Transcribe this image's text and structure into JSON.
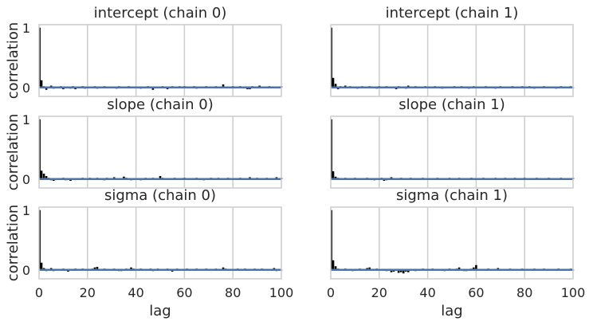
{
  "chart_data": [
    {
      "type": "bar",
      "title": "intercept (chain 0)",
      "xlabel": "",
      "ylabel": "correlation",
      "xlim": [
        0,
        100
      ],
      "ylim": [
        -0.15,
        1.05
      ],
      "yticks": [
        0,
        1
      ],
      "xticks": [
        0,
        20,
        40,
        60,
        80,
        100
      ],
      "grid": true,
      "acf_line_color": "#4c72b0",
      "bar_color": "#000000",
      "x": [
        0,
        1,
        2,
        3,
        4,
        5,
        6,
        7,
        8,
        9,
        10,
        11,
        12,
        13,
        14,
        15,
        16,
        17,
        18,
        19,
        20,
        21,
        22,
        23,
        24,
        25,
        26,
        27,
        28,
        29,
        30,
        31,
        32,
        33,
        34,
        35,
        36,
        37,
        38,
        39,
        40,
        41,
        42,
        43,
        44,
        45,
        46,
        47,
        48,
        49,
        50,
        51,
        52,
        53,
        54,
        55,
        56,
        57,
        58,
        59,
        60,
        61,
        62,
        63,
        64,
        65,
        66,
        67,
        68,
        69,
        70,
        71,
        72,
        73,
        74,
        75,
        76,
        77,
        78,
        79,
        80,
        81,
        82,
        83,
        84,
        85,
        86,
        87,
        88,
        89,
        90,
        91,
        92,
        93,
        94,
        95,
        96,
        97,
        98,
        99,
        100
      ],
      "values": [
        1.0,
        0.12,
        0.02,
        -0.04,
        0.01,
        0.03,
        -0.02,
        0.0,
        0.01,
        0.02,
        -0.03,
        0.01,
        0.0,
        -0.02,
        0.02,
        -0.03,
        0.01,
        0.0,
        0.02,
        -0.02,
        0.01,
        0.0,
        -0.01,
        0.02,
        -0.02,
        0.01,
        0.0,
        0.02,
        0.01,
        -0.01,
        0.0,
        0.01,
        -0.02,
        0.02,
        0.01,
        0.0,
        -0.01,
        0.02,
        -0.01,
        0.0,
        0.01,
        0.0,
        -0.02,
        0.01,
        -0.01,
        0.02,
        0.0,
        -0.04,
        0.01,
        0.0,
        -0.01,
        0.02,
        0.0,
        -0.03,
        0.01,
        0.02,
        0.0,
        -0.01,
        0.02,
        0.01,
        0.02,
        0.0,
        0.01,
        -0.01,
        0.02,
        -0.02,
        0.01,
        0.0,
        0.01,
        0.02,
        -0.01,
        0.0,
        0.01,
        0.02,
        -0.01,
        0.0,
        0.05,
        0.0,
        -0.01,
        0.01,
        0.02,
        0.0,
        -0.01,
        0.02,
        0.0,
        0.0,
        -0.03,
        -0.03,
        0.02,
        0.0,
        0.01,
        0.03,
        -0.01,
        0.0,
        0.01,
        0.02,
        0.0,
        -0.01,
        0.01,
        -0.01,
        0.02
      ]
    },
    {
      "type": "bar",
      "title": "intercept (chain 1)",
      "xlabel": "",
      "ylabel": "",
      "xlim": [
        0,
        100
      ],
      "ylim": [
        -0.15,
        1.05
      ],
      "yticks": [
        0,
        1
      ],
      "xticks": [
        0,
        20,
        40,
        60,
        80,
        100
      ],
      "grid": true,
      "acf_line_color": "#4c72b0",
      "bar_color": "#000000",
      "x": [
        0,
        1,
        2,
        3,
        4,
        5,
        6,
        7,
        8,
        9,
        10,
        11,
        12,
        13,
        14,
        15,
        16,
        17,
        18,
        19,
        20,
        21,
        22,
        23,
        24,
        25,
        26,
        27,
        28,
        29,
        30,
        31,
        32,
        33,
        34,
        35,
        36,
        37,
        38,
        39,
        40,
        41,
        42,
        43,
        44,
        45,
        46,
        47,
        48,
        49,
        50,
        51,
        52,
        53,
        54,
        55,
        56,
        57,
        58,
        59,
        60,
        61,
        62,
        63,
        64,
        65,
        66,
        67,
        68,
        69,
        70,
        71,
        72,
        73,
        74,
        75,
        76,
        77,
        78,
        79,
        80,
        81,
        82,
        83,
        84,
        85,
        86,
        87,
        88,
        89,
        90,
        91,
        92,
        93,
        94,
        95,
        96,
        97,
        98,
        99,
        100
      ],
      "values": [
        1.0,
        0.16,
        0.06,
        -0.03,
        0.02,
        0.01,
        0.03,
        -0.01,
        0.02,
        0.01,
        0.0,
        -0.02,
        0.01,
        0.02,
        0.0,
        -0.01,
        0.02,
        0.0,
        0.01,
        -0.02,
        0.02,
        -0.01,
        0.0,
        0.02,
        -0.01,
        0.01,
        0.0,
        -0.03,
        0.02,
        0.01,
        0.0,
        -0.02,
        0.03,
        0.01,
        -0.01,
        0.02,
        0.0,
        -0.01,
        0.01,
        0.02,
        0.0,
        0.01,
        -0.01,
        0.02,
        0.0,
        0.01,
        -0.02,
        0.01,
        0.0,
        0.01,
        -0.01,
        0.02,
        0.0,
        -0.01,
        0.02,
        0.01,
        0.0,
        -0.02,
        0.01,
        0.02,
        0.0,
        0.01,
        -0.01,
        0.0,
        0.02,
        -0.01,
        0.01,
        0.0,
        -0.02,
        0.01,
        0.02,
        0.0,
        -0.01,
        0.01,
        0.0,
        0.02,
        -0.01,
        0.0,
        0.01,
        0.02,
        -0.01,
        0.0,
        0.02,
        0.0,
        -0.02,
        0.01,
        0.0,
        0.01,
        0.02,
        -0.01,
        0.0,
        0.01,
        0.0,
        -0.02,
        0.01,
        0.02,
        0.0,
        -0.01,
        0.01,
        0.02,
        0.0
      ]
    },
    {
      "type": "bar",
      "title": "slope (chain 0)",
      "xlabel": "",
      "ylabel": "correlation",
      "xlim": [
        0,
        100
      ],
      "ylim": [
        -0.15,
        1.05
      ],
      "yticks": [
        0,
        1
      ],
      "xticks": [
        0,
        20,
        40,
        60,
        80,
        100
      ],
      "grid": true,
      "acf_line_color": "#4c72b0",
      "bar_color": "#000000",
      "x": [
        0,
        1,
        2,
        3,
        4,
        5,
        6,
        7,
        8,
        9,
        10,
        11,
        12,
        13,
        14,
        15,
        16,
        17,
        18,
        19,
        20,
        21,
        22,
        23,
        24,
        25,
        26,
        27,
        28,
        29,
        30,
        31,
        32,
        33,
        34,
        35,
        36,
        37,
        38,
        39,
        40,
        41,
        42,
        43,
        44,
        45,
        46,
        47,
        48,
        49,
        50,
        51,
        52,
        53,
        54,
        55,
        56,
        57,
        58,
        59,
        60,
        61,
        62,
        63,
        64,
        65,
        66,
        67,
        68,
        69,
        70,
        71,
        72,
        73,
        74,
        75,
        76,
        77,
        78,
        79,
        80,
        81,
        82,
        83,
        84,
        85,
        86,
        87,
        88,
        89,
        90,
        91,
        92,
        93,
        94,
        95,
        96,
        97,
        98,
        99,
        100
      ],
      "values": [
        1.0,
        0.14,
        0.09,
        0.05,
        0.02,
        -0.02,
        -0.03,
        0.01,
        0.0,
        -0.01,
        0.02,
        -0.02,
        0.01,
        -0.03,
        0.0,
        0.01,
        -0.01,
        0.0,
        0.02,
        -0.01,
        0.01,
        0.02,
        0.0,
        -0.01,
        0.02,
        0.0,
        0.01,
        -0.02,
        0.02,
        0.0,
        0.01,
        0.03,
        0.0,
        -0.01,
        0.01,
        0.04,
        0.02,
        0.0,
        -0.02,
        0.01,
        0.0,
        0.01,
        -0.02,
        0.01,
        0.02,
        0.0,
        -0.01,
        0.02,
        0.01,
        0.0,
        0.05,
        0.02,
        0.0,
        -0.01,
        0.01,
        0.0,
        0.02,
        -0.01,
        0.0,
        0.01,
        0.02,
        0.0,
        -0.01,
        0.01,
        0.0,
        0.02,
        0.0,
        0.01,
        -0.02,
        0.0,
        0.01,
        0.02,
        -0.01,
        0.0,
        0.02,
        0.01,
        0.0,
        -0.01,
        0.02,
        0.0,
        0.01,
        0.0,
        -0.01,
        0.02,
        0.0,
        0.01,
        0.0,
        0.03,
        0.0,
        -0.01,
        0.02,
        0.0,
        0.01,
        -0.01,
        0.02,
        0.0,
        0.01,
        0.0,
        0.03,
        -0.01,
        0.02
      ]
    },
    {
      "type": "bar",
      "title": "slope (chain 1)",
      "xlabel": "",
      "ylabel": "",
      "xlim": [
        0,
        100
      ],
      "ylim": [
        -0.15,
        1.05
      ],
      "yticks": [
        0,
        1
      ],
      "xticks": [
        0,
        20,
        40,
        60,
        80,
        100
      ],
      "grid": true,
      "acf_line_color": "#4c72b0",
      "bar_color": "#000000",
      "x": [
        0,
        1,
        2,
        3,
        4,
        5,
        6,
        7,
        8,
        9,
        10,
        11,
        12,
        13,
        14,
        15,
        16,
        17,
        18,
        19,
        20,
        21,
        22,
        23,
        24,
        25,
        26,
        27,
        28,
        29,
        30,
        31,
        32,
        33,
        34,
        35,
        36,
        37,
        38,
        39,
        40,
        41,
        42,
        43,
        44,
        45,
        46,
        47,
        48,
        49,
        50,
        51,
        52,
        53,
        54,
        55,
        56,
        57,
        58,
        59,
        60,
        61,
        62,
        63,
        64,
        65,
        66,
        67,
        68,
        69,
        70,
        71,
        72,
        73,
        74,
        75,
        76,
        77,
        78,
        79,
        80,
        81,
        82,
        83,
        84,
        85,
        86,
        87,
        88,
        89,
        90,
        91,
        92,
        93,
        94,
        95,
        96,
        97,
        98,
        99,
        100
      ],
      "values": [
        1.0,
        0.13,
        0.04,
        0.02,
        -0.01,
        0.01,
        0.02,
        0.0,
        0.01,
        -0.01,
        0.02,
        0.0,
        0.01,
        0.0,
        -0.01,
        0.02,
        0.0,
        0.01,
        -0.02,
        0.0,
        0.01,
        0.02,
        -0.03,
        -0.02,
        0.0,
        0.03,
        0.01,
        0.0,
        -0.01,
        0.02,
        0.0,
        0.01,
        -0.01,
        0.02,
        0.0,
        0.01,
        0.0,
        -0.01,
        0.02,
        0.01,
        0.0,
        0.01,
        -0.01,
        0.0,
        0.02,
        0.0,
        0.01,
        -0.01,
        0.0,
        0.02,
        0.01,
        0.0,
        -0.01,
        0.02,
        0.0,
        0.01,
        0.0,
        -0.01,
        0.02,
        0.0,
        0.01,
        0.0,
        -0.01,
        0.02,
        0.0,
        0.01,
        0.0,
        -0.01,
        0.02,
        0.01,
        0.0,
        -0.01,
        0.02,
        0.0,
        0.01,
        0.0,
        0.02,
        -0.01,
        0.0,
        0.01,
        0.02,
        0.0,
        -0.01,
        0.01,
        0.0,
        0.02,
        0.0,
        -0.01,
        0.01,
        0.0,
        0.02,
        0.0,
        0.01,
        -0.01,
        0.0,
        0.02,
        0.0,
        0.01,
        -0.01,
        0.0,
        0.02
      ]
    },
    {
      "type": "bar",
      "title": "sigma (chain 0)",
      "xlabel": "lag",
      "ylabel": "correlation",
      "xlim": [
        0,
        100
      ],
      "ylim": [
        -0.15,
        1.05
      ],
      "yticks": [
        0,
        1
      ],
      "xticks": [
        0,
        20,
        40,
        60,
        80,
        100
      ],
      "grid": true,
      "acf_line_color": "#4c72b0",
      "bar_color": "#000000",
      "x": [
        0,
        1,
        2,
        3,
        4,
        5,
        6,
        7,
        8,
        9,
        10,
        11,
        12,
        13,
        14,
        15,
        16,
        17,
        18,
        19,
        20,
        21,
        22,
        23,
        24,
        25,
        26,
        27,
        28,
        29,
        30,
        31,
        32,
        33,
        34,
        35,
        36,
        37,
        38,
        39,
        40,
        41,
        42,
        43,
        44,
        45,
        46,
        47,
        48,
        49,
        50,
        51,
        52,
        53,
        54,
        55,
        56,
        57,
        58,
        59,
        60,
        61,
        62,
        63,
        64,
        65,
        66,
        67,
        68,
        69,
        70,
        71,
        72,
        73,
        74,
        75,
        76,
        77,
        78,
        79,
        80,
        81,
        82,
        83,
        84,
        85,
        86,
        87,
        88,
        89,
        90,
        91,
        92,
        93,
        94,
        95,
        96,
        97,
        98,
        99,
        100
      ],
      "values": [
        1.0,
        0.12,
        0.03,
        -0.02,
        0.01,
        0.03,
        -0.02,
        0.0,
        0.01,
        -0.01,
        0.02,
        0.0,
        -0.03,
        0.01,
        0.0,
        0.02,
        -0.01,
        0.0,
        0.02,
        0.01,
        0.0,
        -0.01,
        0.02,
        0.04,
        0.05,
        0.0,
        -0.01,
        0.02,
        0.0,
        0.01,
        -0.01,
        0.02,
        0.0,
        -0.02,
        -0.02,
        0.01,
        0.02,
        0.0,
        0.04,
        0.02,
        -0.01,
        0.01,
        0.02,
        0.0,
        -0.01,
        0.0,
        0.02,
        -0.02,
        0.01,
        0.02,
        0.0,
        -0.01,
        0.01,
        0.02,
        0.0,
        -0.03,
        0.01,
        0.02,
        0.0,
        -0.01,
        0.01,
        0.02,
        -0.01,
        0.0,
        0.01,
        0.02,
        0.0,
        -0.01,
        0.01,
        0.02,
        0.0,
        -0.01,
        0.01,
        0.02,
        0.0,
        0.01,
        0.04,
        0.02,
        0.0,
        -0.01,
        0.01,
        0.0,
        0.02,
        -0.01,
        0.0,
        0.02,
        0.01,
        -0.01,
        0.0,
        0.02,
        0.0,
        0.01,
        0.02,
        -0.01,
        0.0,
        0.01,
        0.0,
        0.03,
        -0.02,
        0.01,
        0.0
      ]
    },
    {
      "type": "bar",
      "title": "sigma (chain 1)",
      "xlabel": "lag",
      "ylabel": "",
      "xlim": [
        0,
        100
      ],
      "ylim": [
        -0.15,
        1.05
      ],
      "yticks": [
        0,
        1
      ],
      "xticks": [
        0,
        20,
        40,
        60,
        80,
        100
      ],
      "grid": true,
      "acf_line_color": "#4c72b0",
      "bar_color": "#000000",
      "x": [
        0,
        1,
        2,
        3,
        4,
        5,
        6,
        7,
        8,
        9,
        10,
        11,
        12,
        13,
        14,
        15,
        16,
        17,
        18,
        19,
        20,
        21,
        22,
        23,
        24,
        25,
        26,
        27,
        28,
        29,
        30,
        31,
        32,
        33,
        34,
        35,
        36,
        37,
        38,
        39,
        40,
        41,
        42,
        43,
        44,
        45,
        46,
        47,
        48,
        49,
        50,
        51,
        52,
        53,
        54,
        55,
        56,
        57,
        58,
        59,
        60,
        61,
        62,
        63,
        64,
        65,
        66,
        67,
        68,
        69,
        70,
        71,
        72,
        73,
        74,
        75,
        76,
        77,
        78,
        79,
        80,
        81,
        82,
        83,
        84,
        85,
        86,
        87,
        88,
        89,
        90,
        91,
        92,
        93,
        94,
        95,
        96,
        97,
        98,
        99,
        100
      ],
      "values": [
        1.0,
        0.16,
        0.06,
        0.02,
        0.01,
        -0.01,
        0.02,
        0.0,
        0.01,
        -0.02,
        0.01,
        0.0,
        0.02,
        0.0,
        -0.01,
        0.03,
        0.04,
        0.0,
        -0.01,
        0.02,
        0.0,
        0.01,
        0.0,
        -0.02,
        0.01,
        -0.04,
        -0.03,
        0.0,
        -0.05,
        -0.04,
        -0.06,
        -0.03,
        -0.04,
        0.0,
        0.01,
        -0.02,
        0.01,
        0.0,
        0.02,
        -0.01,
        0.0,
        0.01,
        0.02,
        0.0,
        -0.01,
        0.01,
        0.0,
        -0.02,
        0.01,
        0.02,
        0.0,
        -0.01,
        0.02,
        0.04,
        0.0,
        -0.02,
        -0.02,
        0.0,
        0.02,
        0.04,
        0.08,
        0.0,
        -0.01,
        0.01,
        0.0,
        0.02,
        -0.01,
        0.0,
        0.01,
        0.03,
        0.0,
        -0.01,
        0.01,
        0.0,
        0.02,
        0.0,
        0.01,
        -0.01,
        0.0,
        0.02,
        0.01,
        0.0,
        -0.01,
        0.01,
        0.02,
        0.0,
        -0.01,
        0.0,
        0.02,
        0.01,
        0.0,
        -0.01,
        0.01,
        0.0,
        0.02,
        0.0,
        -0.01,
        0.01,
        0.0,
        0.02,
        0.0
      ]
    }
  ]
}
